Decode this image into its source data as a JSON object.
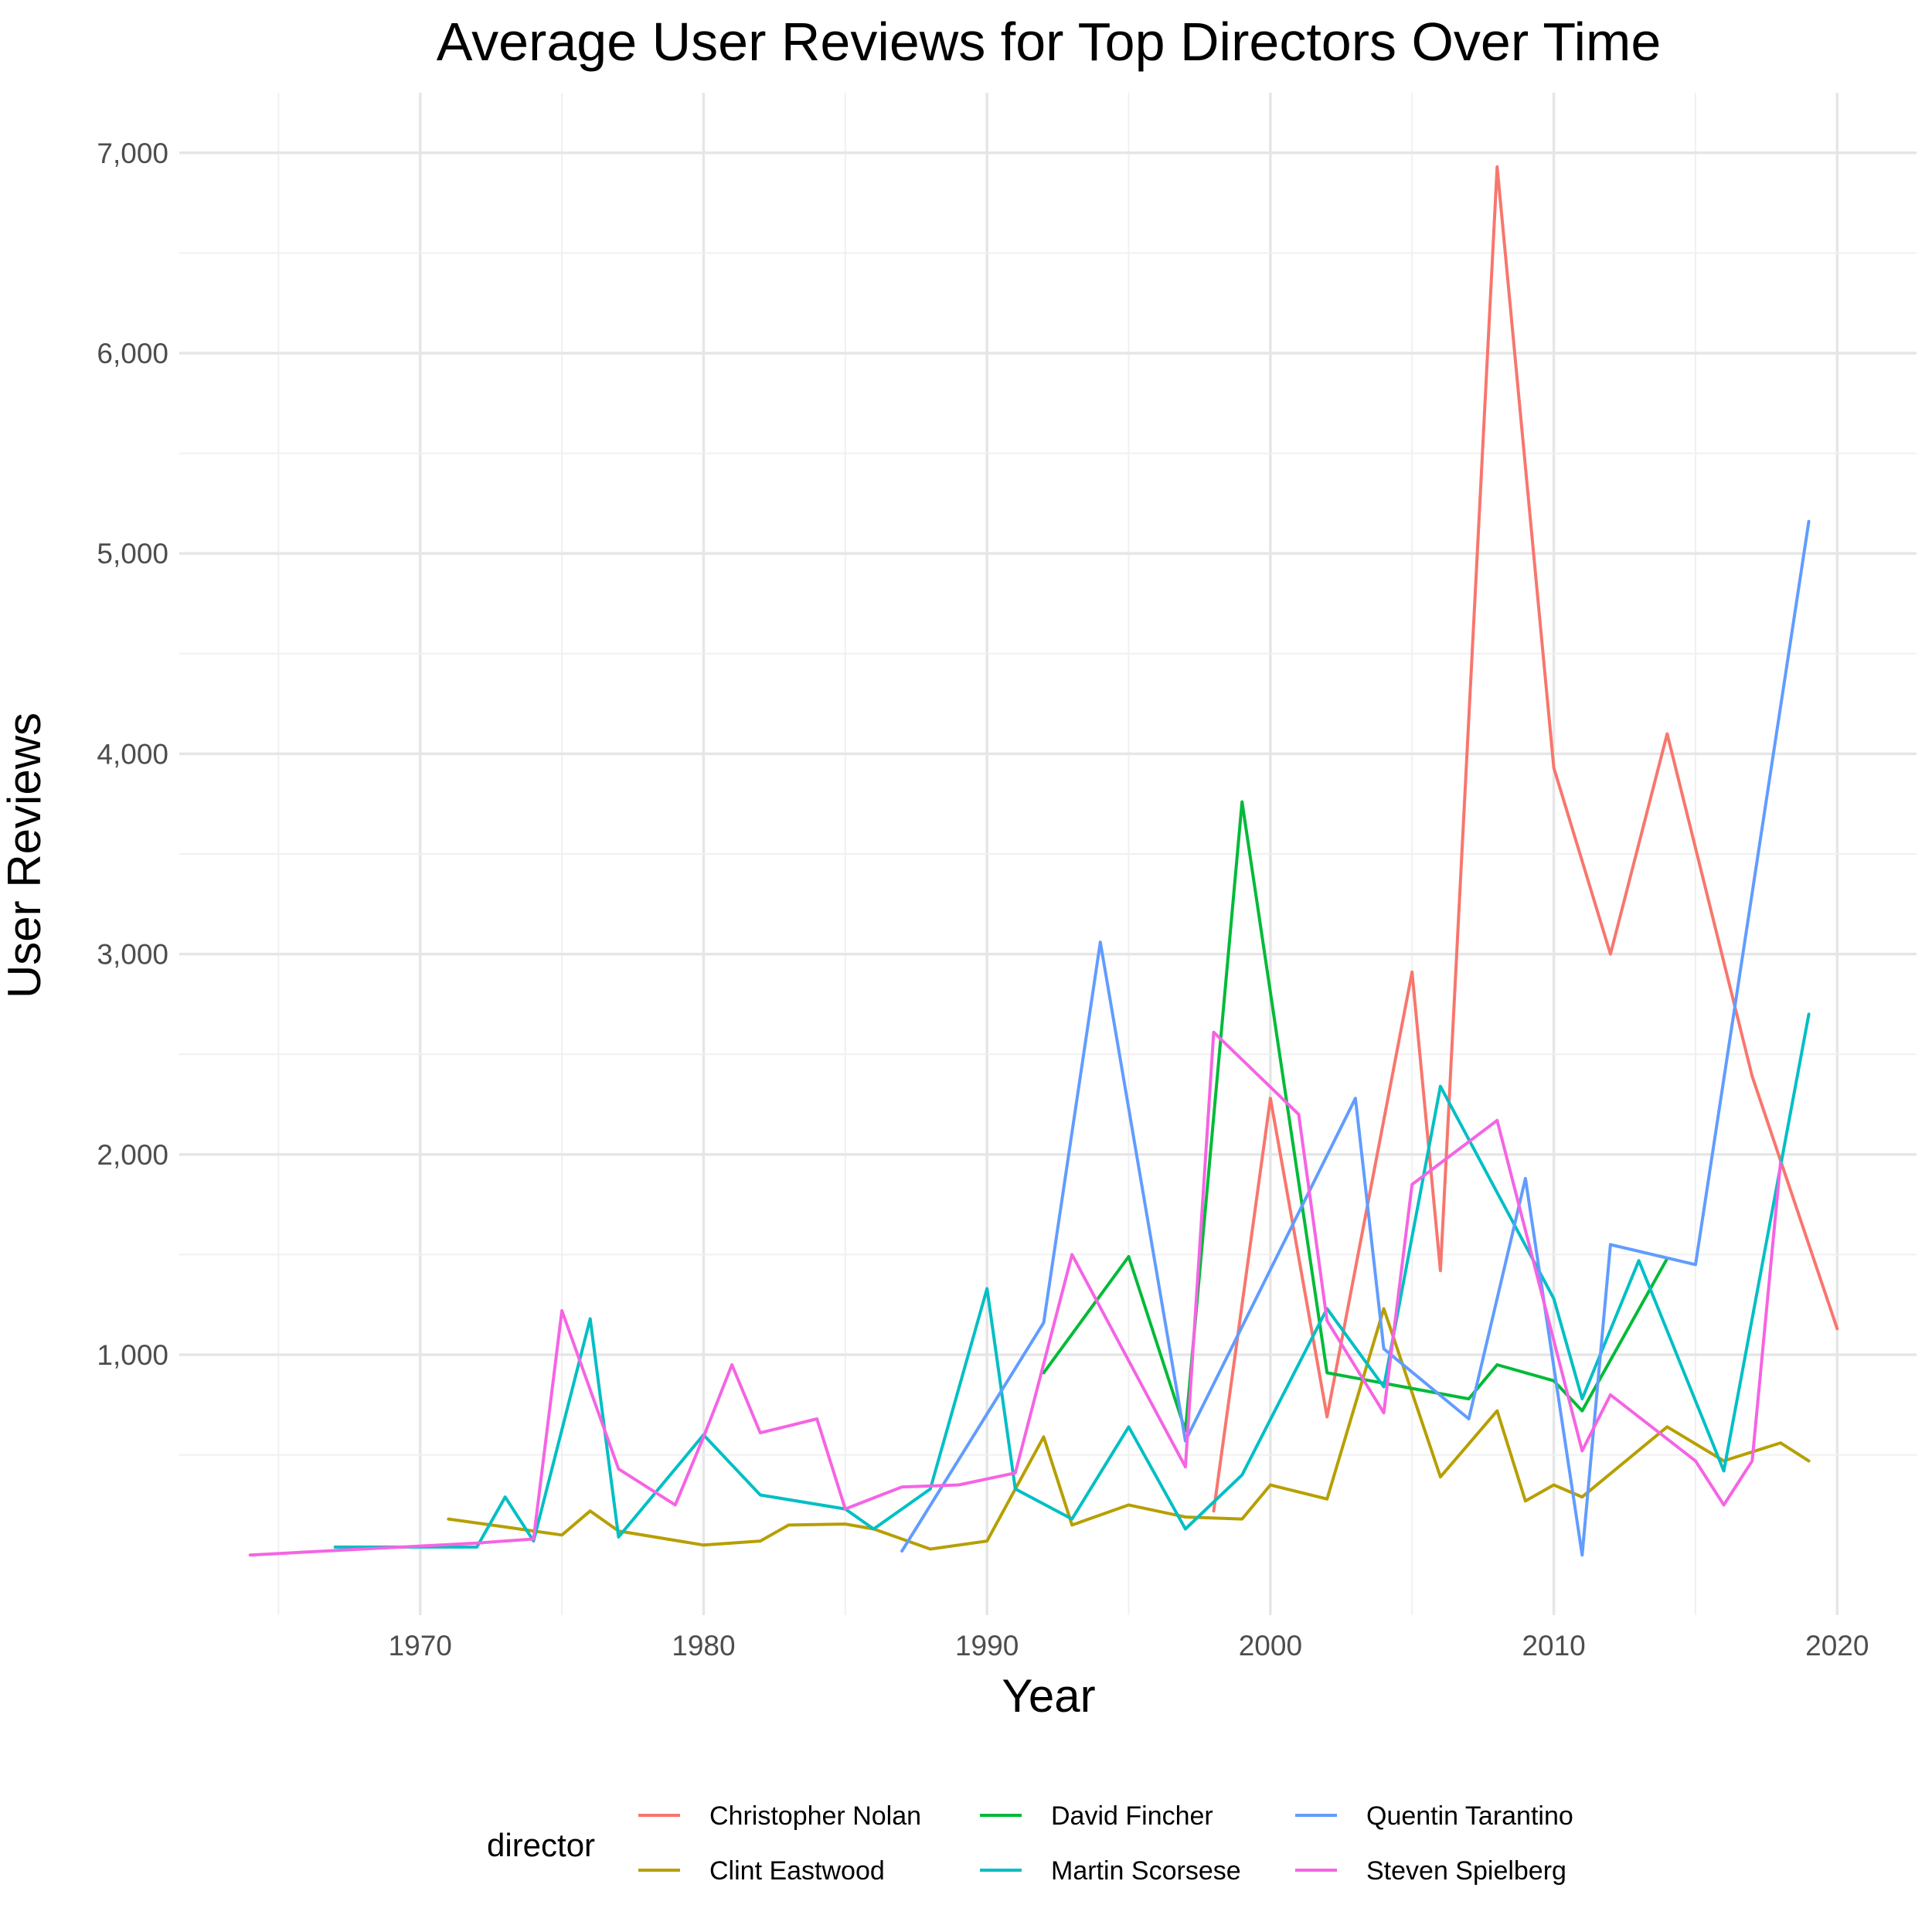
{
  "chart_data": {
    "type": "line",
    "title": "Average User Reviews for Top Directors Over Time",
    "xlabel": "Year",
    "ylabel": "User Reviews",
    "xlim": [
      1961.5,
      2022.8
    ],
    "ylim": [
      -300,
      7300
    ],
    "x_ticks": [
      1970,
      1980,
      1990,
      2000,
      2010,
      2020
    ],
    "y_ticks": [
      1000,
      2000,
      3000,
      4000,
      5000,
      6000,
      7000
    ],
    "y_tick_labels": [
      "1,000",
      "2,000",
      "3,000",
      "4,000",
      "5,000",
      "6,000",
      "7,000"
    ],
    "grid": true,
    "legend": {
      "title": "director",
      "position": "bottom"
    },
    "series": [
      {
        "name": "Christopher Nolan",
        "color": "#F8766D",
        "points": [
          [
            1998,
            220
          ],
          [
            2000,
            2280
          ],
          [
            2002,
            690
          ],
          [
            2005,
            2910
          ],
          [
            2006,
            1420
          ],
          [
            2008,
            6930
          ],
          [
            2010,
            3930
          ],
          [
            2012,
            3000
          ],
          [
            2014,
            4100
          ],
          [
            2017,
            2390
          ],
          [
            2020,
            1130
          ]
        ]
      },
      {
        "name": "Clint Eastwood",
        "color": "#B79F00",
        "points": [
          [
            1971,
            180
          ],
          [
            1973,
            140
          ],
          [
            1974,
            120
          ],
          [
            1975,
            100
          ],
          [
            1976,
            220
          ],
          [
            1977,
            120
          ],
          [
            1980,
            50
          ],
          [
            1982,
            70
          ],
          [
            1983,
            150
          ],
          [
            1985,
            155
          ],
          [
            1986,
            130
          ],
          [
            1988,
            30
          ],
          [
            1990,
            70
          ],
          [
            1992,
            590
          ],
          [
            1993,
            150
          ],
          [
            1995,
            250
          ],
          [
            1997,
            190
          ],
          [
            1999,
            180
          ],
          [
            2000,
            350
          ],
          [
            2002,
            280
          ],
          [
            2004,
            1230
          ],
          [
            2006,
            390
          ],
          [
            2008,
            720
          ],
          [
            2009,
            270
          ],
          [
            2010,
            350
          ],
          [
            2011,
            290
          ],
          [
            2014,
            640
          ],
          [
            2016,
            470
          ],
          [
            2018,
            560
          ],
          [
            2019,
            470
          ]
        ]
      },
      {
        "name": "David Fincher",
        "color": "#00BA38",
        "points": [
          [
            1992,
            910
          ],
          [
            1995,
            1490
          ],
          [
            1997,
            620
          ],
          [
            1999,
            3760
          ],
          [
            2002,
            910
          ],
          [
            2007,
            780
          ],
          [
            2008,
            950
          ],
          [
            2010,
            870
          ],
          [
            2011,
            720
          ],
          [
            2014,
            1480
          ]
        ]
      },
      {
        "name": "Martin Scorsese",
        "color": "#00BFC4",
        "points": [
          [
            1967,
            40
          ],
          [
            1972,
            40
          ],
          [
            1973,
            290
          ],
          [
            1974,
            70
          ],
          [
            1976,
            1180
          ],
          [
            1977,
            90
          ],
          [
            1980,
            600
          ],
          [
            1982,
            300
          ],
          [
            1985,
            230
          ],
          [
            1986,
            130
          ],
          [
            1988,
            330
          ],
          [
            1990,
            1330
          ],
          [
            1991,
            330
          ],
          [
            1993,
            180
          ],
          [
            1995,
            640
          ],
          [
            1997,
            130
          ],
          [
            1999,
            400
          ],
          [
            2002,
            1230
          ],
          [
            2004,
            840
          ],
          [
            2006,
            2340
          ],
          [
            2010,
            1280
          ],
          [
            2011,
            780
          ],
          [
            2013,
            1470
          ],
          [
            2016,
            420
          ],
          [
            2019,
            2700
          ]
        ]
      },
      {
        "name": "Quentin Tarantino",
        "color": "#619CFF",
        "points": [
          [
            1987,
            20
          ],
          [
            1992,
            1160
          ],
          [
            1994,
            3060
          ],
          [
            1997,
            570
          ],
          [
            2003,
            2280
          ],
          [
            2004,
            1030
          ],
          [
            2007,
            680
          ],
          [
            2009,
            1880
          ],
          [
            2011,
            0
          ],
          [
            2012,
            1550
          ],
          [
            2015,
            1450
          ],
          [
            2019,
            5160
          ]
        ]
      },
      {
        "name": "Steven Spielberg",
        "color": "#F564E3",
        "points": [
          [
            1964,
            0
          ],
          [
            1972,
            60
          ],
          [
            1974,
            80
          ],
          [
            1975,
            1220
          ],
          [
            1977,
            430
          ],
          [
            1979,
            250
          ],
          [
            1980,
            590
          ],
          [
            1981,
            950
          ],
          [
            1982,
            610
          ],
          [
            1984,
            680
          ],
          [
            1985,
            230
          ],
          [
            1987,
            340
          ],
          [
            1989,
            350
          ],
          [
            1991,
            410
          ],
          [
            1993,
            1500
          ],
          [
            1997,
            440
          ],
          [
            1998,
            2610
          ],
          [
            2001,
            2200
          ],
          [
            2002,
            1170
          ],
          [
            2004,
            710
          ],
          [
            2005,
            1850
          ],
          [
            2008,
            2170
          ],
          [
            2011,
            520
          ],
          [
            2012,
            800
          ],
          [
            2015,
            470
          ],
          [
            2016,
            250
          ],
          [
            2017,
            470
          ],
          [
            2018,
            1960
          ]
        ]
      }
    ]
  }
}
